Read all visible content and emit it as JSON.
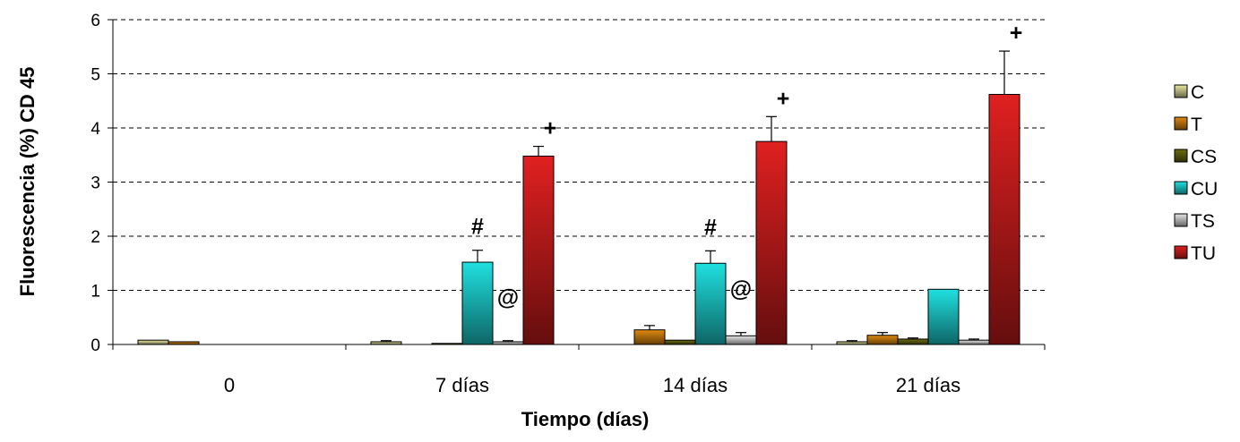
{
  "chart_data": {
    "type": "bar",
    "categories": [
      "0",
      "7 días",
      "14 días",
      "21 días"
    ],
    "xlabel": "Tiempo (días)",
    "ylabel": "Fluorescencia (%) CD 45",
    "ylim": [
      0,
      6
    ],
    "yticks": [
      0,
      1,
      2,
      3,
      4,
      5,
      6
    ],
    "grid": true,
    "legend_position": "right",
    "series": [
      {
        "name": "C",
        "color": "#e8e8a0",
        "values": [
          0.08,
          0.05,
          null,
          0.05
        ],
        "errors": [
          0,
          0.02,
          0,
          0.02
        ]
      },
      {
        "name": "T",
        "color": "#e08a10",
        "values": [
          0.05,
          null,
          0.27,
          0.17
        ],
        "errors": [
          0,
          0,
          0.08,
          0.05
        ]
      },
      {
        "name": "CS",
        "color": "#6b6b10",
        "values": [
          null,
          0.02,
          0.08,
          0.1
        ],
        "errors": [
          0,
          0,
          0,
          0.02
        ]
      },
      {
        "name": "CU",
        "color": "#20e0e0",
        "values": [
          null,
          1.52,
          1.5,
          1.02
        ],
        "errors": [
          0,
          0.22,
          0.23,
          0
        ]
      },
      {
        "name": "TS",
        "color": "#e4e4e4",
        "values": [
          null,
          0.05,
          0.16,
          0.08
        ],
        "errors": [
          0,
          0.02,
          0.06,
          0.02
        ]
      },
      {
        "name": "TU",
        "color": "#e02020",
        "values": [
          null,
          3.48,
          3.75,
          4.62
        ],
        "errors": [
          0,
          0.18,
          0.46,
          0.8
        ]
      }
    ],
    "annotations": [
      {
        "text": "#",
        "category": 1,
        "series": "CU"
      },
      {
        "text": "@",
        "category": 1,
        "series": "TS"
      },
      {
        "text": "+",
        "category": 1,
        "series": "TU"
      },
      {
        "text": "#",
        "category": 2,
        "series": "CU"
      },
      {
        "text": "@",
        "category": 2,
        "series": "TS"
      },
      {
        "text": "+",
        "category": 2,
        "series": "TU"
      },
      {
        "text": "+",
        "category": 3,
        "series": "TU"
      }
    ]
  }
}
